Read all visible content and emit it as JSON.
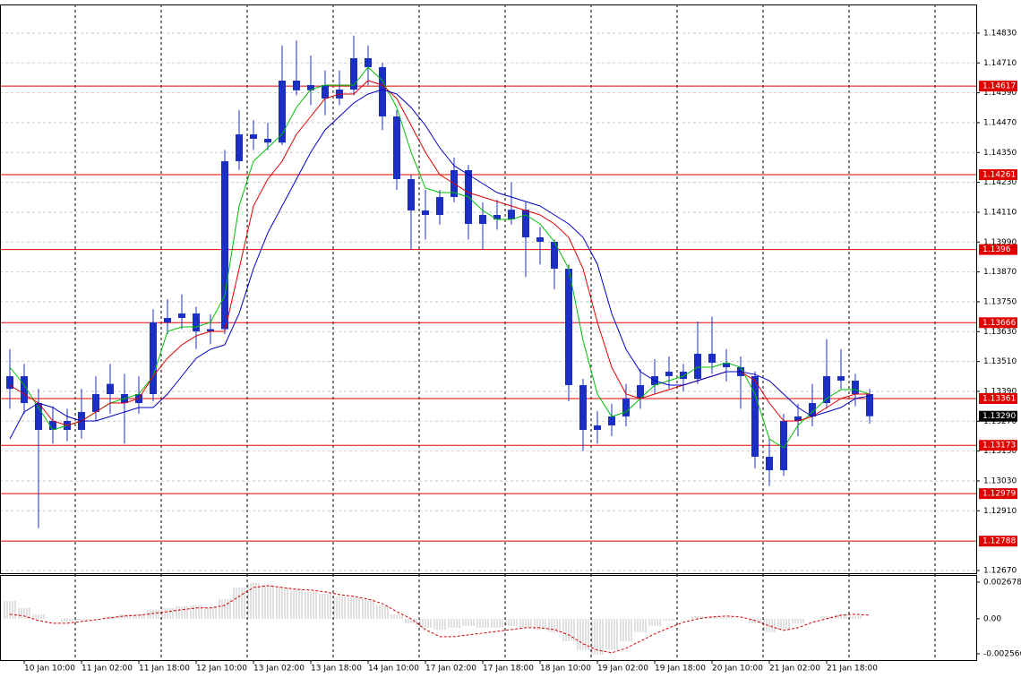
{
  "chart_data": [
    {
      "type": "candlestick",
      "categories": [
        null,
        "10 Jan 10:00",
        null,
        null,
        null,
        "11 Jan 02:00",
        null,
        null,
        null,
        "11 Jan 18:00",
        null,
        null,
        null,
        "12 Jan 10:00",
        null,
        null,
        null,
        "13 Jan 02:00",
        null,
        null,
        null,
        "13 Jan 18:00",
        null,
        null,
        null,
        "14 Jan 10:00",
        null,
        null,
        null,
        "17 Jan 02:00",
        null,
        null,
        null,
        "17 Jan 18:00",
        null,
        null,
        null,
        "18 Jan 10:00",
        null,
        null,
        null,
        "19 Jan 02:00",
        null,
        null,
        null,
        "19 Jan 18:00",
        null,
        null,
        null,
        "20 Jan 10:00",
        null,
        null,
        null,
        "21 Jan 02:00",
        null,
        null,
        null,
        "21 Jan 18:00",
        null,
        null,
        null
      ],
      "open": [
        1.134,
        1.13451,
        1.13343,
        1.13235,
        1.13271,
        1.13235,
        1.13307,
        1.1342,
        1.13379,
        1.13343,
        1.13379,
        1.13667,
        1.13685,
        1.13703,
        1.13631,
        1.1364,
        1.14315,
        1.14423,
        1.14405,
        1.1439,
        1.14639,
        1.146,
        1.14621,
        1.14567,
        1.14603,
        1.14729,
        1.14693,
        1.14495,
        1.14243,
        1.14117,
        1.14099,
        1.14171,
        1.14279,
        1.14063,
        1.14099,
        1.14081,
        1.1412,
        1.14009,
        1.13991,
        1.13883,
        1.13415,
        1.13235,
        1.13253,
        1.13289,
        1.13361,
        1.13415,
        1.13451,
        1.13469,
        1.1344,
        1.13541,
        1.13505,
        1.13487,
        1.13451,
        1.13127,
        1.13073,
        1.13271,
        1.13289,
        1.13343,
        1.13451,
        1.13433,
        1.13379
      ],
      "high": [
        1.1356,
        1.135,
        1.134,
        1.1333,
        1.1332,
        1.134,
        1.1345,
        1.135,
        1.1346,
        1.1345,
        1.1372,
        1.1376,
        1.1378,
        1.1373,
        1.137,
        1.1436,
        1.1452,
        1.1448,
        1.1447,
        1.1478,
        1.148,
        1.1474,
        1.1468,
        1.1468,
        1.1482,
        1.1478,
        1.1471,
        1.1452,
        1.1426,
        1.142,
        1.142,
        1.1433,
        1.143,
        1.1415,
        1.1416,
        1.1423,
        1.1415,
        1.1405,
        1.14,
        1.139,
        1.1344,
        1.1331,
        1.1334,
        1.1342,
        1.1348,
        1.1352,
        1.1353,
        1.135,
        1.1367,
        1.1369,
        1.1356,
        1.1353,
        1.1347,
        1.132,
        1.133,
        1.1334,
        1.1342,
        1.136,
        1.1356,
        1.1346,
        1.134
      ],
      "low": [
        1.1332,
        1.133,
        1.1284,
        1.1318,
        1.1319,
        1.132,
        1.1327,
        1.133,
        1.1318,
        1.133,
        1.1335,
        1.1362,
        1.1364,
        1.1356,
        1.1358,
        1.1362,
        1.1428,
        1.1436,
        1.1436,
        1.1438,
        1.1458,
        1.1454,
        1.145,
        1.1454,
        1.1458,
        1.1462,
        1.1444,
        1.142,
        1.1396,
        1.14,
        1.1406,
        1.1415,
        1.14,
        1.1396,
        1.1404,
        1.1406,
        1.1385,
        1.139,
        1.138,
        1.1335,
        1.1315,
        1.1318,
        1.1321,
        1.1325,
        1.1332,
        1.1338,
        1.134,
        1.1339,
        1.1342,
        1.1346,
        1.1343,
        1.1332,
        1.1308,
        1.1301,
        1.1305,
        1.1321,
        1.1325,
        1.1332,
        1.134,
        1.1333,
        1.1326
      ],
      "close": [
        1.13451,
        1.13343,
        1.13235,
        1.13271,
        1.13235,
        1.13307,
        1.13379,
        1.13379,
        1.13343,
        1.13379,
        1.13667,
        1.13685,
        1.13703,
        1.13631,
        1.1364,
        1.14315,
        1.14423,
        1.14405,
        1.1439,
        1.14639,
        1.146,
        1.14621,
        1.14567,
        1.14603,
        1.14729,
        1.14693,
        1.14495,
        1.14243,
        1.14117,
        1.14099,
        1.14171,
        1.14279,
        1.14063,
        1.14099,
        1.14081,
        1.1412,
        1.14009,
        1.13991,
        1.13883,
        1.13415,
        1.13235,
        1.13253,
        1.13289,
        1.13361,
        1.13415,
        1.13451,
        1.13469,
        1.1344,
        1.13541,
        1.13505,
        1.13487,
        1.13451,
        1.13127,
        1.13073,
        1.13271,
        1.13289,
        1.13343,
        1.13451,
        1.13433,
        1.13379,
        1.1329
      ],
      "color": "#1c2fc4",
      "series": [
        {
          "color": "#00c000",
          "values": [
            1.13487,
            1.13415,
            1.13325,
            1.13235,
            1.13253,
            1.13271,
            1.13307,
            1.13343,
            1.13361,
            1.13379,
            1.13451,
            1.13631,
            1.13649,
            1.13649,
            1.13667,
            1.13775,
            1.14135,
            1.14315,
            1.14369,
            1.14423,
            1.14531,
            1.14603,
            1.14621,
            1.14621,
            1.14621,
            1.14693,
            1.14639,
            1.14531,
            1.14351,
            1.14207,
            1.14189,
            1.14189,
            1.14171,
            1.14117,
            1.14081,
            1.14081,
            1.14099,
            1.14063,
            1.13991,
            1.13883,
            1.13595,
            1.13379,
            1.13289,
            1.13307,
            1.13361,
            1.13415,
            1.13433,
            1.13451,
            1.13487,
            1.13487,
            1.13505,
            1.13487,
            1.13379,
            1.13199,
            1.13163,
            1.13253,
            1.13307,
            1.13361,
            1.13397,
            1.13397,
            1.13379
          ]
        },
        {
          "color": "#e00000",
          "values": [
            1.13415,
            1.13379,
            1.13343,
            1.13271,
            1.13253,
            1.13271,
            1.13307,
            1.13343,
            1.13343,
            1.13361,
            1.13451,
            1.13523,
            1.13577,
            1.13613,
            1.13631,
            1.13631,
            1.13883,
            1.14135,
            1.14243,
            1.14315,
            1.14423,
            1.14495,
            1.14567,
            1.14585,
            1.14585,
            1.14639,
            1.14621,
            1.14567,
            1.14459,
            1.14351,
            1.14261,
            1.14225,
            1.14189,
            1.14171,
            1.14153,
            1.14135,
            1.14117,
            1.14099,
            1.14063,
            1.14009,
            1.13883,
            1.13667,
            1.13487,
            1.13379,
            1.13361,
            1.13379,
            1.13397,
            1.13415,
            1.13433,
            1.13451,
            1.13469,
            1.13469,
            1.13433,
            1.13343,
            1.13271,
            1.13271,
            1.13289,
            1.13325,
            1.13361,
            1.13379,
            1.13379
          ]
        },
        {
          "color": "#0000c8",
          "values": [
            1.13199,
            1.13307,
            1.13343,
            1.13325,
            1.13289,
            1.13271,
            1.13271,
            1.13289,
            1.13307,
            1.13325,
            1.13325,
            1.13379,
            1.13451,
            1.13523,
            1.13559,
            1.13577,
            1.13703,
            1.13883,
            1.14027,
            1.14135,
            1.14243,
            1.14351,
            1.14441,
            1.14495,
            1.14549,
            1.14585,
            1.14603,
            1.14585,
            1.14531,
            1.14459,
            1.14369,
            1.14297,
            1.14261,
            1.14225,
            1.14189,
            1.14171,
            1.14153,
            1.14135,
            1.14099,
            1.14063,
            1.14009,
            1.13901,
            1.13703,
            1.13559,
            1.13469,
            1.13433,
            1.13415,
            1.13415,
            1.13433,
            1.13451,
            1.13469,
            1.13469,
            1.13458,
            1.13433,
            1.13379,
            1.13325,
            1.13289,
            1.13307,
            1.13325,
            1.13361,
            1.13372
          ]
        }
      ],
      "levels": [
        1.14617,
        1.14261,
        1.1396,
        1.13666,
        1.13361,
        1.13173,
        1.12979,
        1.12788
      ],
      "level_color": "#e00000",
      "last": {
        "value": 1.1329,
        "label": "1.13290"
      },
      "ylim": [
        1.12659,
        1.14945
      ],
      "yticks": [
        {
          "value": 1.1483,
          "label": "1.14830"
        },
        {
          "value": 1.1471,
          "label": "1.14710"
        },
        {
          "value": 1.1459,
          "label": "1.14590"
        },
        {
          "value": 1.1447,
          "label": "1.14470"
        },
        {
          "value": 1.1435,
          "label": "1.14350"
        },
        {
          "value": 1.1423,
          "label": "1.14230"
        },
        {
          "value": 1.1411,
          "label": "1.14110"
        },
        {
          "value": 1.1399,
          "label": "1.13990"
        },
        {
          "value": 1.1387,
          "label": "1.13870"
        },
        {
          "value": 1.1375,
          "label": "1.13750"
        },
        {
          "value": 1.1363,
          "label": "1.13630"
        },
        {
          "value": 1.1351,
          "label": "1.13510"
        },
        {
          "value": 1.1339,
          "label": "1.13390"
        },
        {
          "value": 1.1327,
          "label": "1.13270"
        },
        {
          "value": 1.1315,
          "label": "1.13150"
        },
        {
          "value": 1.1303,
          "label": "1.13030"
        },
        {
          "value": 1.1291,
          "label": "1.12910"
        },
        {
          "value": 1.1267,
          "label": "1.12670"
        }
      ],
      "grid": true
    },
    {
      "type": "bar",
      "values": [
        0.00131,
        0.00079,
        0.00033,
        0,
        -0.0002,
        -0.00013,
        0,
        0.0002,
        0.00033,
        0.00033,
        0.00066,
        0.00079,
        0.00092,
        0.00098,
        0.00085,
        0.00144,
        0.00229,
        0.00262,
        0.00249,
        0.00229,
        0.00216,
        0.00197,
        0.00183,
        0.00164,
        0.00157,
        0.00144,
        0.00098,
        0.00033,
        -0.00033,
        -0.00066,
        -0.00079,
        -0.00066,
        -0.00052,
        -0.00066,
        -0.00066,
        -0.00052,
        -0.00066,
        -0.00079,
        -0.00098,
        -0.00164,
        -0.00229,
        -0.00262,
        -0.00229,
        -0.00164,
        -0.00098,
        -0.00052,
        -0.00013,
        0,
        0.0002,
        0.0002,
        0.00013,
        0,
        -0.00033,
        -0.00098,
        -0.00079,
        -0.00033,
        0,
        0.0002,
        0.00033,
        0.0002,
        0
      ],
      "color": "#c0c0c0",
      "signal": {
        "color": "#d00000",
        "values": [
          0.00033,
          0.0002,
          -0.00013,
          -0.00033,
          -0.00033,
          -0.0002,
          -7e-05,
          7e-05,
          0.0002,
          0.00026,
          0.00039,
          0.00052,
          0.00066,
          0.00079,
          0.00079,
          0.00098,
          0.00164,
          0.00229,
          0.00242,
          0.00229,
          0.00216,
          0.0021,
          0.00197,
          0.00177,
          0.00164,
          0.00144,
          0.00111,
          0.00052,
          0,
          -0.00079,
          -0.00131,
          -0.00131,
          -0.00118,
          -0.00105,
          -0.00092,
          -0.00079,
          -0.00066,
          -0.00066,
          -0.00079,
          -0.00118,
          -0.00183,
          -0.00229,
          -0.00249,
          -0.00216,
          -0.00164,
          -0.00111,
          -0.00066,
          -0.00026,
          0,
          0.00013,
          0.0002,
          0.00013,
          -0.00013,
          -0.00052,
          -0.00085,
          -0.00066,
          -0.00026,
          0,
          0.00026,
          0.00033,
          0.00026
        ]
      },
      "ylim": [
        -0.003025,
        0.003137
      ],
      "yticks": [
        0.002678,
        {
          "value": 0,
          "label": "0.00"
        },
        -0.002566
      ]
    }
  ]
}
